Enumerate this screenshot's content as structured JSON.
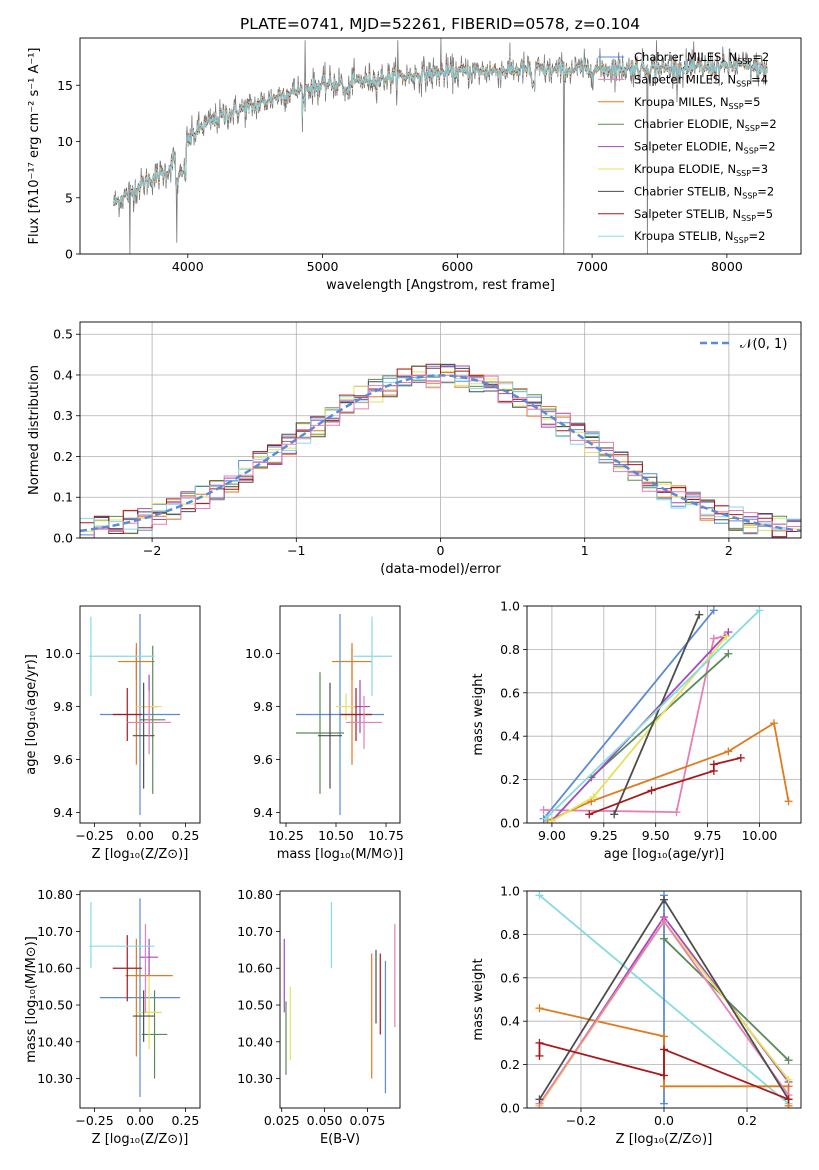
{
  "figure_title": "PLATE=0741, MJD=52261, FIBERID=0578, z=0.104",
  "colors": {
    "c1": "#5b8bd6",
    "c2": "#e07b1f",
    "c3": "#5a8a5a",
    "c4": "#a24bbd",
    "c5": "#e6e05a",
    "c6": "#4d4d4d",
    "c7": "#a8191e",
    "c8": "#86dbe3",
    "c9": "#e87fb4"
  },
  "legend": {
    "entries": [
      {
        "pre": "Chabrier MILES, N",
        "sub": "SSP",
        "post": "=2",
        "color": "c1"
      },
      {
        "pre": "Salpeter MILES, N",
        "sub": "SSP",
        "post": "=4",
        "color": "c9"
      },
      {
        "pre": "Kroupa MILES, N",
        "sub": "SSP",
        "post": "=5",
        "color": "c2"
      },
      {
        "pre": "Chabrier ELODIE, N",
        "sub": "SSP",
        "post": "=2",
        "color": "c3"
      },
      {
        "pre": "Salpeter ELODIE, N",
        "sub": "SSP",
        "post": "=2",
        "color": "c4"
      },
      {
        "pre": "Kroupa ELODIE, N",
        "sub": "SSP",
        "post": "=3",
        "color": "c5"
      },
      {
        "pre": "Chabrier STELIB, N",
        "sub": "SSP",
        "post": "=2",
        "color": "c6"
      },
      {
        "pre": "Salpeter STELIB, N",
        "sub": "SSP",
        "post": "=5",
        "color": "c7"
      },
      {
        "pre": "Kroupa STELIB, N",
        "sub": "SSP",
        "post": "=2",
        "color": "c8"
      }
    ]
  },
  "chart_data": [
    {
      "id": "spectrum",
      "type": "line",
      "xlabel": "wavelength [Angstrom, rest frame]",
      "ylabel": "Flux [fλ10⁻¹⁷ erg cm⁻² s⁻¹ A⁻¹]",
      "xlim": [
        3200,
        8550
      ],
      "ylim": [
        0,
        19.2
      ],
      "xticks": [
        4000,
        5000,
        6000,
        7000,
        8000
      ],
      "yticks": [
        0,
        5,
        10,
        15
      ],
      "continuum": {
        "x": [
          3450,
          3550,
          3700,
          3850,
          3950,
          4100,
          4300,
          4500,
          4700,
          4900,
          5100,
          5300,
          5500,
          5700,
          5900,
          6100,
          6300,
          6500,
          6700,
          6900,
          7100,
          7300,
          7500,
          7700,
          7900,
          8100,
          8300
        ],
        "y": [
          4.5,
          5.3,
          6.5,
          7.4,
          9.5,
          11.3,
          12.5,
          13.2,
          14.2,
          14.8,
          15.2,
          15.4,
          15.7,
          15.9,
          16.1,
          16.2,
          16.3,
          16.4,
          16.3,
          16.4,
          16.5,
          16.5,
          16.5,
          16.5,
          16.6,
          16.8,
          16.3
        ]
      },
      "spikes": [
        {
          "x": 3570,
          "y": 0
        },
        {
          "x": 3920,
          "y": 1.0
        },
        {
          "x": 4870,
          "y": 19.0
        },
        {
          "x": 5560,
          "y": 19.0
        },
        {
          "x": 5880,
          "y": 19.2
        },
        {
          "x": 6790,
          "y": 0
        },
        {
          "x": 7410,
          "y": 0
        },
        {
          "x": 7480,
          "y": 19.0
        }
      ]
    },
    {
      "id": "residual_hist",
      "type": "histogram",
      "xlabel": "(data-model)/error",
      "ylabel": "Normed distribution",
      "xlim": [
        -2.5,
        2.5
      ],
      "ylim": [
        0,
        0.53
      ],
      "xticks": [
        -2,
        -1,
        0,
        1,
        2
      ],
      "yticks": [
        0.0,
        0.1,
        0.2,
        0.3,
        0.4,
        0.5
      ],
      "bin_width": 0.1,
      "reference": {
        "name": "𝒩(0, 1)",
        "mean": 0,
        "sigma": 1
      }
    },
    {
      "id": "age_vs_Z",
      "type": "errorbar",
      "xlabel": "Z [log₁₀(Z/Z⊙)]",
      "ylabel": "age  [log₁₀(age/yr)]",
      "xlim": [
        -0.33,
        0.33
      ],
      "ylim": [
        9.36,
        10.18
      ],
      "xticks": [
        -0.25,
        0.0,
        0.25
      ],
      "yticks": [
        9.4,
        9.6,
        9.8,
        10.0
      ],
      "points": [
        {
          "c": "c1",
          "x": 0.0,
          "xerr": 0.22,
          "y": 9.77,
          "yerr": 0.38
        },
        {
          "c": "c2",
          "x": -0.02,
          "xerr": 0.1,
          "y": 9.97,
          "yerr": 0.07
        },
        {
          "c": "c2",
          "x": -0.02,
          "xerr": 0.0,
          "y": 9.8,
          "yerr": 0.22
        },
        {
          "c": "c3",
          "x": 0.07,
          "xerr": 0.07,
          "y": 9.75,
          "yerr": 0.28
        },
        {
          "c": "c4",
          "x": 0.05,
          "xerr": 0.05,
          "y": 9.8,
          "yerr": 0.12
        },
        {
          "c": "c5",
          "x": 0.05,
          "xerr": 0.07,
          "y": 9.8,
          "yerr": 0.05
        },
        {
          "c": "c6",
          "x": 0.02,
          "xerr": 0.06,
          "y": 9.69,
          "yerr": 0.2
        },
        {
          "c": "c7",
          "x": -0.07,
          "xerr": 0.08,
          "y": 9.77,
          "yerr": 0.1
        },
        {
          "c": "c8",
          "x": -0.27,
          "xerr": 0.0,
          "y": 9.99,
          "yerr": 0.15
        },
        {
          "c": "c8",
          "x": -0.1,
          "xerr": 0.18,
          "y": 9.99,
          "yerr": 0.0
        },
        {
          "c": "c9",
          "x": 0.05,
          "xerr": 0.12,
          "y": 9.74,
          "yerr": 0.12
        }
      ]
    },
    {
      "id": "age_vs_mass",
      "type": "errorbar",
      "xlabel": "mass [log₁₀(M/M⊙)]",
      "ylabel": "",
      "xlim": [
        10.22,
        10.82
      ],
      "ylim": [
        9.36,
        10.18
      ],
      "xticks": [
        10.25,
        10.5,
        10.75
      ],
      "yticks": [
        9.4,
        9.6,
        9.8,
        10.0
      ],
      "points": [
        {
          "c": "c1",
          "x": 10.52,
          "xerr": 0.22,
          "y": 9.77,
          "yerr": 0.38
        },
        {
          "c": "c2",
          "x": 10.58,
          "xerr": 0.1,
          "y": 9.97,
          "yerr": 0.07
        },
        {
          "c": "c2",
          "x": 10.58,
          "xerr": 0.0,
          "y": 9.8,
          "yerr": 0.22
        },
        {
          "c": "c3",
          "x": 10.42,
          "xerr": 0.12,
          "y": 9.7,
          "yerr": 0.23
        },
        {
          "c": "c4",
          "x": 10.62,
          "xerr": 0.05,
          "y": 9.8,
          "yerr": 0.1
        },
        {
          "c": "c5",
          "x": 10.55,
          "xerr": 0.05,
          "y": 9.8,
          "yerr": 0.05
        },
        {
          "c": "c6",
          "x": 10.47,
          "xerr": 0.06,
          "y": 9.69,
          "yerr": 0.2
        },
        {
          "c": "c7",
          "x": 10.6,
          "xerr": 0.08,
          "y": 9.77,
          "yerr": 0.1
        },
        {
          "c": "c8",
          "x": 10.68,
          "xerr": 0.0,
          "y": 9.99,
          "yerr": 0.15
        },
        {
          "c": "c8",
          "x": 10.68,
          "xerr": 0.1,
          "y": 9.99,
          "yerr": 0.0
        },
        {
          "c": "c9",
          "x": 10.64,
          "xerr": 0.09,
          "y": 9.74,
          "yerr": 0.1
        }
      ]
    },
    {
      "id": "massweight_vs_age",
      "type": "line",
      "xlabel": "age  [log₁₀(age/yr)]",
      "ylabel": "mass weight",
      "xlim": [
        8.88,
        10.2
      ],
      "ylim": [
        0,
        1
      ],
      "xticks": [
        9.0,
        9.25,
        9.5,
        9.75,
        10.0
      ],
      "yticks": [
        0.0,
        0.2,
        0.4,
        0.6,
        0.8,
        1.0
      ],
      "series": [
        {
          "c": "c1",
          "x": [
            8.96,
            9.78
          ],
          "y": [
            0.02,
            0.98
          ]
        },
        {
          "c": "c9",
          "x": [
            8.96,
            9.6,
            9.78,
            9.83
          ],
          "y": [
            0.06,
            0.05,
            0.85,
            0.86
          ]
        },
        {
          "c": "c2",
          "x": [
            8.98,
            9.19,
            9.85,
            10.07,
            10.14
          ],
          "y": [
            0.01,
            0.1,
            0.33,
            0.46,
            0.1
          ]
        },
        {
          "c": "c3",
          "x": [
            9.19,
            9.85
          ],
          "y": [
            0.21,
            0.78
          ]
        },
        {
          "c": "c4",
          "x": [
            9.0,
            9.85
          ],
          "y": [
            0.01,
            0.88
          ]
        },
        {
          "c": "c5",
          "x": [
            9.0,
            9.2,
            9.84
          ],
          "y": [
            0.01,
            0.12,
            0.86
          ]
        },
        {
          "c": "c6",
          "x": [
            9.3,
            9.71
          ],
          "y": [
            0.04,
            0.96
          ]
        },
        {
          "c": "c7",
          "x": [
            9.18,
            9.48,
            9.78,
            9.78,
            9.91
          ],
          "y": [
            0.04,
            0.15,
            0.24,
            0.27,
            0.3
          ]
        },
        {
          "c": "c8",
          "x": [
            8.97,
            10.0
          ],
          "y": [
            0.02,
            0.98
          ]
        }
      ]
    },
    {
      "id": "mass_vs_Z",
      "type": "errorbar",
      "xlabel": "Z [log₁₀(Z/Z⊙)]",
      "ylabel": "mass [log₁₀(M/M⊙)]",
      "xlim": [
        -0.33,
        0.33
      ],
      "ylim": [
        10.22,
        10.81
      ],
      "xticks": [
        -0.25,
        0.0,
        0.25
      ],
      "yticks": [
        10.3,
        10.4,
        10.5,
        10.6,
        10.7,
        10.8
      ],
      "points": [
        {
          "c": "c1",
          "x": 0.0,
          "xerr": 0.22,
          "y": 10.52,
          "yerr": 0.27
        },
        {
          "c": "c2",
          "x": -0.02,
          "xerr": 0.0,
          "y": 10.52,
          "yerr": 0.16
        },
        {
          "c": "c2",
          "x": 0.05,
          "xerr": 0.13,
          "y": 10.58,
          "yerr": 0.0
        },
        {
          "c": "c3",
          "x": 0.08,
          "xerr": 0.07,
          "y": 10.42,
          "yerr": 0.12
        },
        {
          "c": "c4",
          "x": 0.05,
          "xerr": 0.05,
          "y": 10.63,
          "yerr": 0.05
        },
        {
          "c": "c5",
          "x": 0.05,
          "xerr": 0.07,
          "y": 10.48,
          "yerr": 0.1
        },
        {
          "c": "c6",
          "x": 0.02,
          "xerr": 0.06,
          "y": 10.47,
          "yerr": 0.07
        },
        {
          "c": "c7",
          "x": -0.07,
          "xerr": 0.08,
          "y": 10.6,
          "yerr": 0.09
        },
        {
          "c": "c8",
          "x": -0.27,
          "xerr": 0.0,
          "y": 10.69,
          "yerr": 0.09
        },
        {
          "c": "c8",
          "x": -0.1,
          "xerr": 0.18,
          "y": 10.66,
          "yerr": 0.0
        },
        {
          "c": "c9",
          "x": 0.03,
          "xerr": 0.0,
          "y": 10.6,
          "yerr": 0.12
        }
      ]
    },
    {
      "id": "mass_vs_ebv",
      "type": "errorbar",
      "xlabel": "E(B-V)",
      "ylabel": "",
      "xlim": [
        0.024,
        0.094
      ],
      "ylim": [
        10.22,
        10.81
      ],
      "xticks": [
        0.025,
        0.05,
        0.075
      ],
      "yticks": [
        10.3,
        10.4,
        10.5,
        10.6,
        10.7,
        10.8
      ],
      "points": [
        {
          "c": "c4",
          "x": 0.0265,
          "xerr": 0.0,
          "y": 10.58,
          "yerr": 0.1
        },
        {
          "c": "c3",
          "x": 0.0275,
          "xerr": 0.0,
          "y": 10.41,
          "yerr": 0.1
        },
        {
          "c": "c5",
          "x": 0.03,
          "xerr": 0.0,
          "y": 10.45,
          "yerr": 0.1
        },
        {
          "c": "c8",
          "x": 0.054,
          "xerr": 0.0,
          "y": 10.69,
          "yerr": 0.09
        },
        {
          "c": "c2",
          "x": 0.0775,
          "xerr": 0.0,
          "y": 10.47,
          "yerr": 0.17
        },
        {
          "c": "c6",
          "x": 0.08,
          "xerr": 0.0,
          "y": 10.55,
          "yerr": 0.1
        },
        {
          "c": "c7",
          "x": 0.0825,
          "xerr": 0.0,
          "y": 10.53,
          "yerr": 0.11
        },
        {
          "c": "c1",
          "x": 0.0855,
          "xerr": 0.0,
          "y": 10.44,
          "yerr": 0.18
        },
        {
          "c": "c9",
          "x": 0.091,
          "xerr": 0.0,
          "y": 10.58,
          "yerr": 0.14
        }
      ]
    },
    {
      "id": "massweight_vs_Z",
      "type": "line",
      "xlabel": "Z [log₁₀(Z/Z⊙)]",
      "ylabel": "mass weight",
      "xlim": [
        -0.33,
        0.33
      ],
      "ylim": [
        0,
        1
      ],
      "xticks": [
        -0.2,
        0.0,
        0.2
      ],
      "yticks": [
        0.0,
        0.2,
        0.4,
        0.6,
        0.8,
        1.0
      ],
      "series": [
        {
          "c": "c8",
          "x": [
            -0.3,
            0.3
          ],
          "y": [
            0.98,
            0.02
          ]
        },
        {
          "c": "c1",
          "x": [
            0.0,
            0.0
          ],
          "y": [
            0.02,
            0.98
          ]
        },
        {
          "c": "c2",
          "x": [
            -0.3,
            0.0,
            0.0,
            0.3,
            0.3
          ],
          "y": [
            0.46,
            0.33,
            0.1,
            0.1,
            0.01
          ]
        },
        {
          "c": "c3",
          "x": [
            0.0,
            0.3
          ],
          "y": [
            0.78,
            0.22
          ]
        },
        {
          "c": "c4",
          "x": [
            -0.3,
            0.0,
            0.3
          ],
          "y": [
            0.01,
            0.88,
            0.12
          ]
        },
        {
          "c": "c5",
          "x": [
            -0.3,
            0.0,
            0.3
          ],
          "y": [
            0.01,
            0.86,
            0.13
          ]
        },
        {
          "c": "c9",
          "x": [
            -0.3,
            0.0,
            0.3
          ],
          "y": [
            0.02,
            0.86,
            0.06
          ]
        },
        {
          "c": "c6",
          "x": [
            -0.3,
            0.0,
            0.3
          ],
          "y": [
            0.04,
            0.96,
            0.04
          ]
        },
        {
          "c": "c7",
          "x": [
            -0.3,
            -0.3,
            0.0,
            0.0,
            0.3
          ],
          "y": [
            0.24,
            0.3,
            0.15,
            0.27,
            0.04
          ]
        }
      ]
    }
  ]
}
